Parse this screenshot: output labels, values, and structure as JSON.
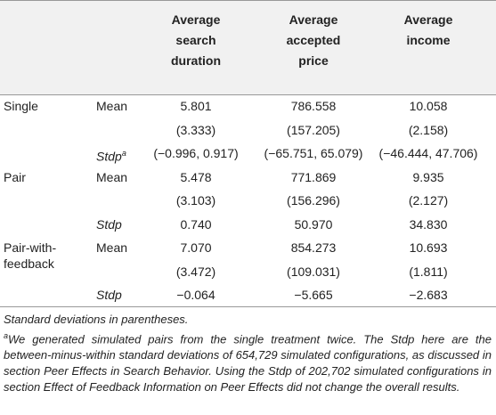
{
  "table": {
    "header": [
      [
        "Average",
        "search",
        "duration"
      ],
      [
        "Average",
        "accepted",
        "price"
      ],
      [
        "Average",
        "income"
      ]
    ],
    "rows": [
      {
        "group": [
          "Single"
        ],
        "stat": "Mean",
        "values": [
          "5.801",
          "786.558",
          "10.058"
        ]
      },
      {
        "values": [
          "(3.333)",
          "(157.205)",
          "(2.158)"
        ]
      },
      {
        "stat": "Stdp",
        "sup": "a",
        "values": [
          "(−0.996, 0.917)",
          "(−65.751, 65.079)",
          "(−46.444, 47.706)"
        ]
      },
      {
        "group": [
          "Pair"
        ],
        "stat": "Mean",
        "values": [
          "5.478",
          "771.869",
          "9.935"
        ]
      },
      {
        "values": [
          "(3.103)",
          "(156.296)",
          "(2.127)"
        ]
      },
      {
        "stat": "Stdp",
        "values": [
          "0.740",
          "50.970",
          "34.830"
        ]
      },
      {
        "group": [
          "Pair-with-",
          "feedback"
        ],
        "stat": "Mean",
        "values": [
          "7.070",
          "854.273",
          "10.693"
        ]
      },
      {
        "values": [
          "(3.472)",
          "(109.031)",
          "(1.811)"
        ]
      },
      {
        "stat": "Stdp",
        "values": [
          "−0.064",
          "−5.665",
          "−2.683"
        ]
      }
    ]
  },
  "notes": {
    "first": "Standard deviations in parentheses.",
    "marker": "a",
    "second": "We generated simulated pairs from the single treatment twice. The Stdp here are the between-minus-within standard deviations of 654,729 simulated configurations, as discussed in section Peer Effects in Search Behavior. Using the Stdp of 202,702 simulated configurations in section Effect of Feedback Information on Peer Effects did not change the overall results."
  }
}
